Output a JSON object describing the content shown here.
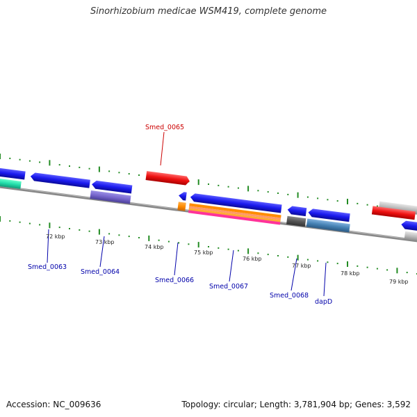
{
  "title": "Sinorhizobium medicae WSM419, complete genome",
  "footer": {
    "accession": "Accession: NC_009636",
    "summary": "Topology: circular; Length: 3,781,904 bp; Genes: 3,592"
  },
  "kbp_labels": [
    "72 kbp",
    "73 kbp",
    "74 kbp",
    "75 kbp",
    "76 kbp",
    "77 kbp",
    "78 kbp",
    "79 kbp"
  ],
  "gene_labels": [
    {
      "name": "Smed_0065",
      "color": "#cc0000"
    },
    {
      "name": "Smed_0063",
      "color": "#0000aa"
    },
    {
      "name": "Smed_0064",
      "color": "#0000aa"
    },
    {
      "name": "Smed_0066",
      "color": "#0000aa"
    },
    {
      "name": "Smed_0067",
      "color": "#0000aa"
    },
    {
      "name": "Smed_0068",
      "color": "#0000aa"
    },
    {
      "name": "dapD",
      "color": "#0000aa"
    }
  ],
  "colors": {
    "cds_blue": "#1a1aee",
    "cds_red": "#ee1111",
    "rna_purple": "#7766cc",
    "grey": "#bbbbbb",
    "dark_grey": "#555555",
    "steel_blue": "#4682b4",
    "orange": "#ff8c00",
    "pink": "#ff3399",
    "teal": "#22ddaa",
    "tick_green": "#228B22",
    "backbone": "#888888"
  }
}
